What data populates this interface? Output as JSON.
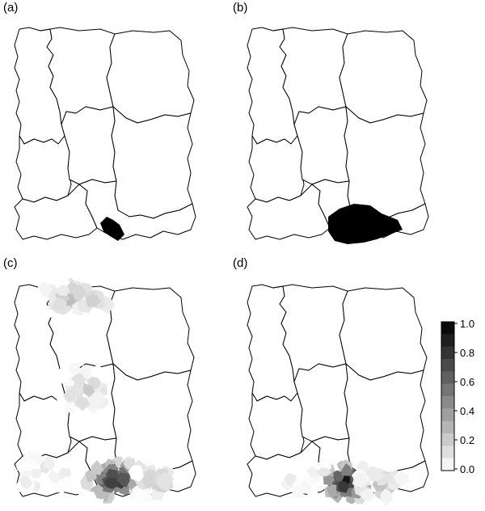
{
  "panels": [
    {
      "label": "(a)"
    },
    {
      "label": "(b)"
    },
    {
      "label": "(c)"
    },
    {
      "label": "(d)"
    }
  ],
  "colorbar": {
    "ticks": [
      "1.0",
      "0.8",
      "0.6",
      "0.4",
      "0.2",
      "0.0"
    ],
    "min": 0.0,
    "max": 1.0,
    "levels": 12,
    "low_color": "#ffffff",
    "high_color": "#000000"
  },
  "colors": {
    "outline": "#000000",
    "background": "#ffffff"
  }
}
